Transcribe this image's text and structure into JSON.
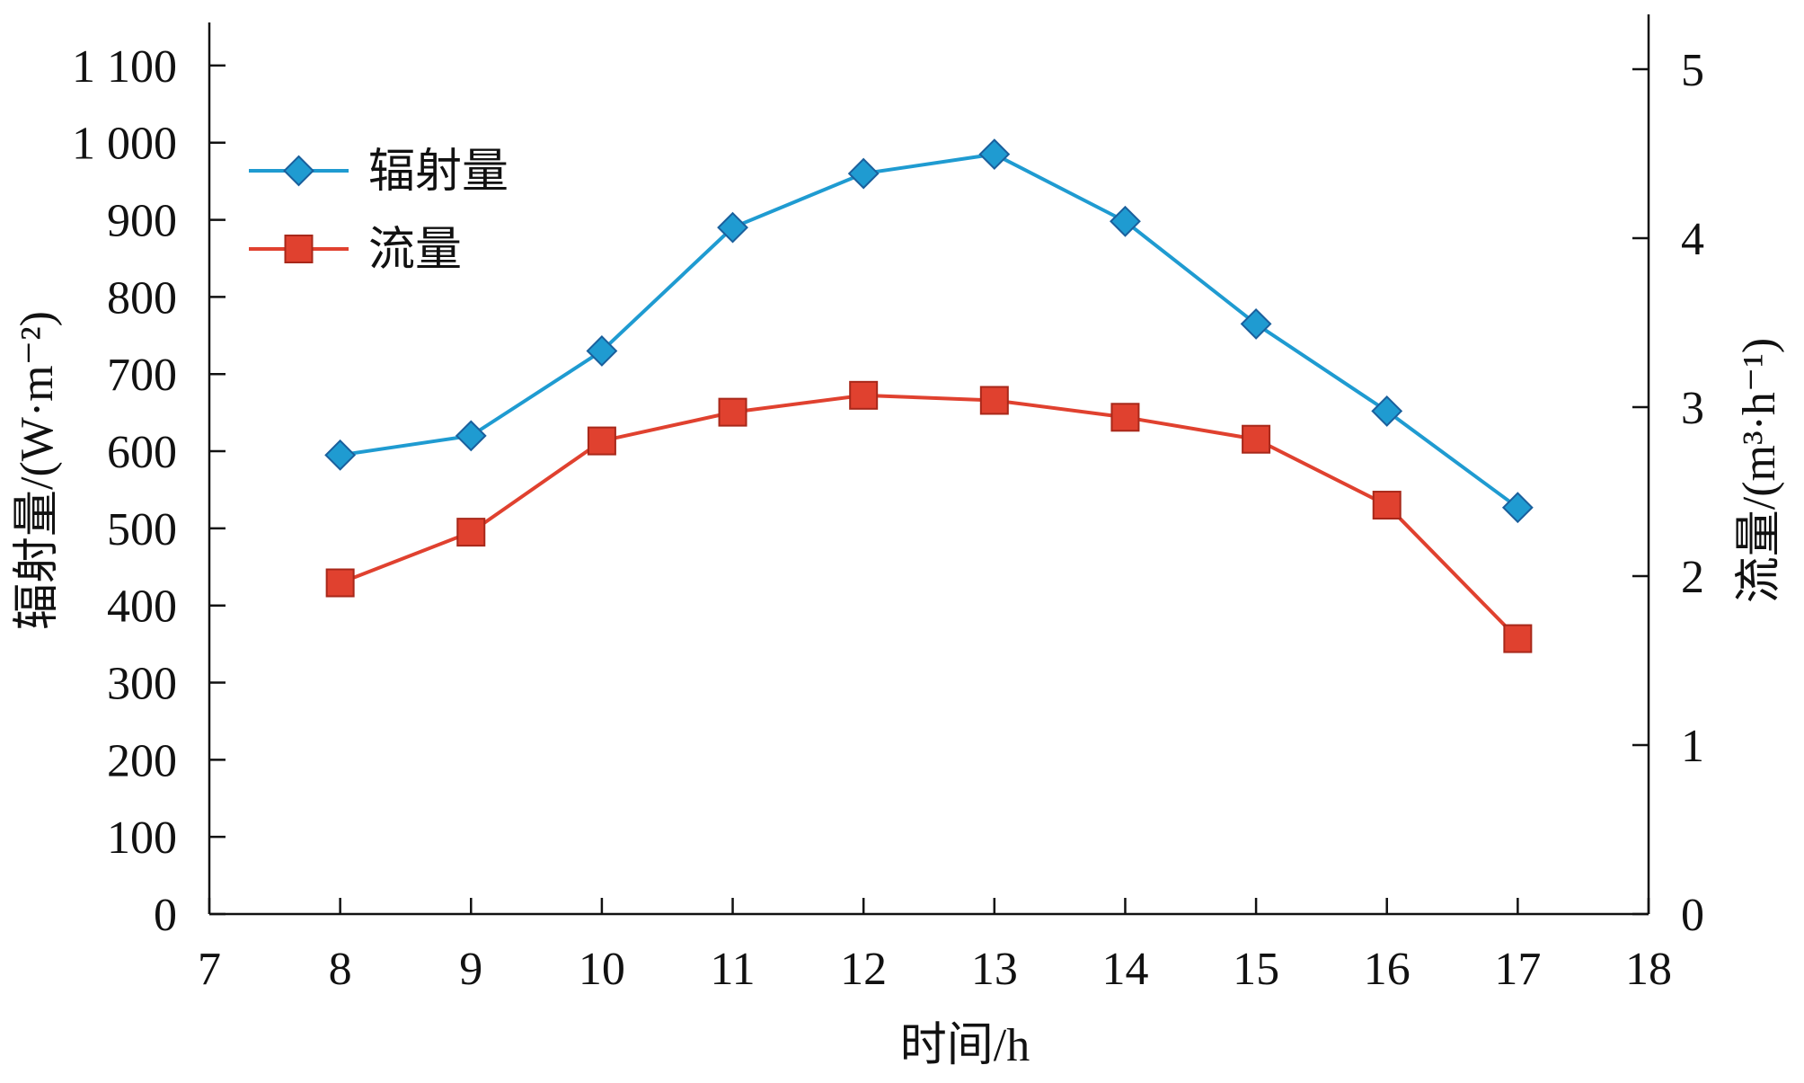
{
  "chart_data": {
    "type": "line",
    "x": [
      8,
      9,
      10,
      11,
      12,
      13,
      14,
      15,
      16,
      17
    ],
    "xlim": [
      7,
      18
    ],
    "xticks": [
      7,
      8,
      9,
      10,
      11,
      12,
      13,
      14,
      15,
      16,
      17,
      18
    ],
    "xlabel": "时间/h",
    "ylabel_left": "辐射量/(W·m⁻²)",
    "ylabel_right": "流量/(m³·h⁻¹)",
    "ylim_left": [
      0,
      1150
    ],
    "ylim_right": [
      0,
      5.25
    ],
    "yticks_left": [
      0,
      100,
      200,
      300,
      400,
      500,
      600,
      700,
      800,
      900,
      1000,
      1100
    ],
    "ytick_labels_left": [
      "0",
      "100",
      "200",
      "300",
      "400",
      "500",
      "600",
      "700",
      "800",
      "900",
      "1 000",
      "1 100"
    ],
    "yticks_right": [
      0,
      1,
      2,
      3,
      4,
      5
    ],
    "ytick_labels_right": [
      "0",
      "1",
      "2",
      "3",
      "4",
      "5"
    ],
    "grid": false,
    "legend_position": "top-left",
    "series": [
      {
        "name": "辐射量",
        "axis": "left",
        "marker": "diamond",
        "color": "#1f9bd1",
        "values": [
          595,
          620,
          730,
          890,
          960,
          985,
          898,
          765,
          652,
          527
        ]
      },
      {
        "name": "流量",
        "axis": "right",
        "marker": "square",
        "color": "#e0412f",
        "values": [
          1.96,
          2.26,
          2.8,
          2.97,
          3.07,
          3.04,
          2.94,
          2.81,
          2.42,
          1.63
        ]
      }
    ]
  }
}
